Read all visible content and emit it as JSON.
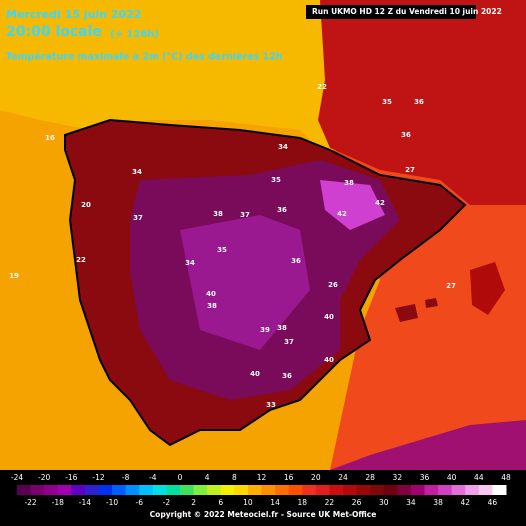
{
  "header": {
    "date": "Mercredi 15 juin 2022",
    "time": "20:00 locale",
    "lead": "(+ 126h)",
    "subtitle": "Température maximale à 2m (°C) des dernières 12h",
    "run": "Run UKMO HD 12 Z du Vendredi 10 juin 2022"
  },
  "map_labels": [
    34,
    37,
    38,
    37,
    36,
    35,
    38,
    42,
    42,
    35,
    36,
    36,
    22,
    35,
    34,
    36,
    40,
    38,
    39,
    38,
    37,
    40,
    40,
    40,
    36,
    33,
    26,
    19,
    16,
    20,
    34,
    27,
    27,
    22
  ],
  "legend": {
    "ticks_top": [
      -24,
      -20,
      -16,
      -12,
      -8,
      -4,
      0,
      4,
      8,
      12,
      16,
      20,
      24,
      28,
      32,
      36,
      40,
      44,
      48
    ],
    "ticks_bottom": [
      -22,
      -18,
      -14,
      -10,
      -6,
      -2,
      2,
      6,
      10,
      14,
      18,
      22,
      26,
      30,
      34,
      38,
      42,
      46
    ],
    "colors": [
      "#5a0050",
      "#7a0070",
      "#900090",
      "#a000b0",
      "#6000c0",
      "#3020d0",
      "#0030f0",
      "#0060ff",
      "#0090ff",
      "#00c0ff",
      "#00e0e0",
      "#00e0a0",
      "#40e060",
      "#80f040",
      "#c0f020",
      "#f0f000",
      "#ffd800",
      "#ffb000",
      "#ff9000",
      "#ff7000",
      "#ff5000",
      "#f03020",
      "#e02020",
      "#c81010",
      "#b00a0a",
      "#980808",
      "#800808",
      "#700010",
      "#800040",
      "#a00070",
      "#c020a0",
      "#d040c0",
      "#e070d8",
      "#f0a0e8",
      "#f8c8f0",
      "#ffffff"
    ],
    "copyright": "Copyright © 2022 Meteociel.fr - Source UK Met-Office"
  }
}
